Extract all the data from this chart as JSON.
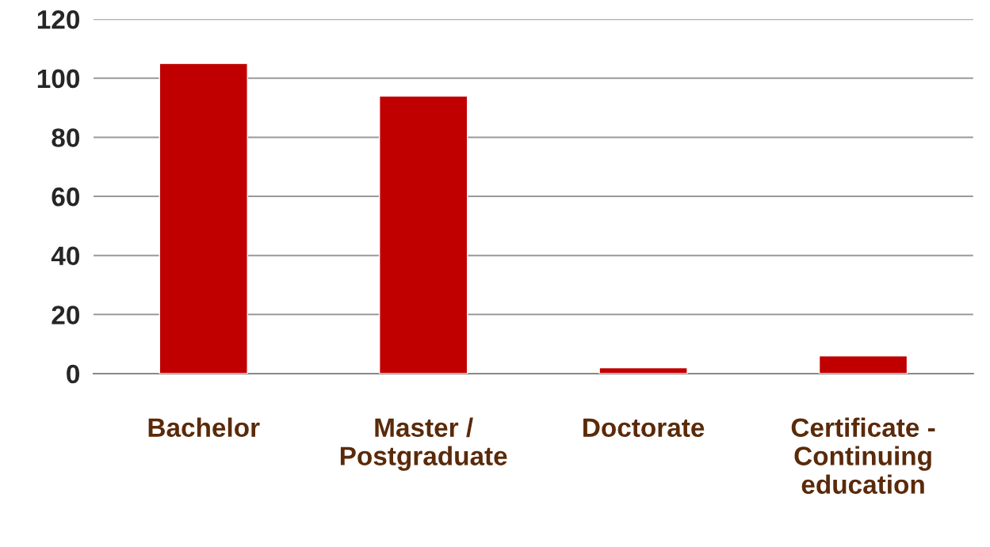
{
  "chart_data": {
    "type": "bar",
    "categories": [
      "Bachelor",
      "Master /\nPostgraduate",
      "Doctorate",
      "Certificate -\nContinuing\neducation"
    ],
    "values": [
      105,
      94,
      2,
      6
    ],
    "color": "#c00000",
    "ylim": [
      0,
      120
    ],
    "yticks": [
      0,
      20,
      40,
      60,
      80,
      100,
      120
    ],
    "grid": "y",
    "legend": false
  }
}
